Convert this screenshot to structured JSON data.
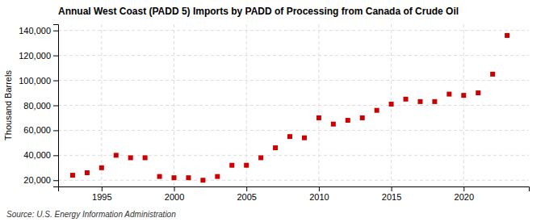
{
  "chart_data": {
    "type": "scatter",
    "title": "Annual West Coast (PADD 5) Imports by PADD of Processing from Canada of Crude Oil",
    "ylabel": "Thousand Barrels",
    "annotations": [
      "Source: U.S. Energy Information Administration"
    ],
    "x": [
      1993,
      1994,
      1995,
      1996,
      1997,
      1998,
      1999,
      2000,
      2001,
      2002,
      2003,
      2004,
      2005,
      2006,
      2007,
      2008,
      2009,
      2010,
      2011,
      2012,
      2013,
      2014,
      2015,
      2016,
      2017,
      2018,
      2019,
      2020,
      2021,
      2022,
      2023
    ],
    "values": [
      24000,
      26000,
      30000,
      40000,
      38000,
      38000,
      23000,
      22000,
      22000,
      20000,
      23000,
      32000,
      32000,
      38000,
      46000,
      55000,
      54000,
      70000,
      65000,
      68000,
      70000,
      76000,
      81000,
      85000,
      83000,
      83000,
      89000,
      88000,
      90000,
      105000,
      136000
    ],
    "color": "#cc0000",
    "marker": "square",
    "xlim": [
      1992,
      2024.5
    ],
    "xticks": [
      1995,
      2000,
      2005,
      2010,
      2015,
      2020
    ],
    "ylim": [
      15000,
      145000
    ],
    "yticks": [
      {
        "value": 20000,
        "label": "20,000"
      },
      {
        "value": 40000,
        "label": "40,000"
      },
      {
        "value": 60000,
        "label": "60,000"
      },
      {
        "value": 80000,
        "label": "80,000"
      },
      {
        "value": 100000,
        "label": "100,000"
      },
      {
        "value": 120000,
        "label": "120,000"
      },
      {
        "value": 140000,
        "label": "140,000"
      }
    ],
    "grid": true
  }
}
